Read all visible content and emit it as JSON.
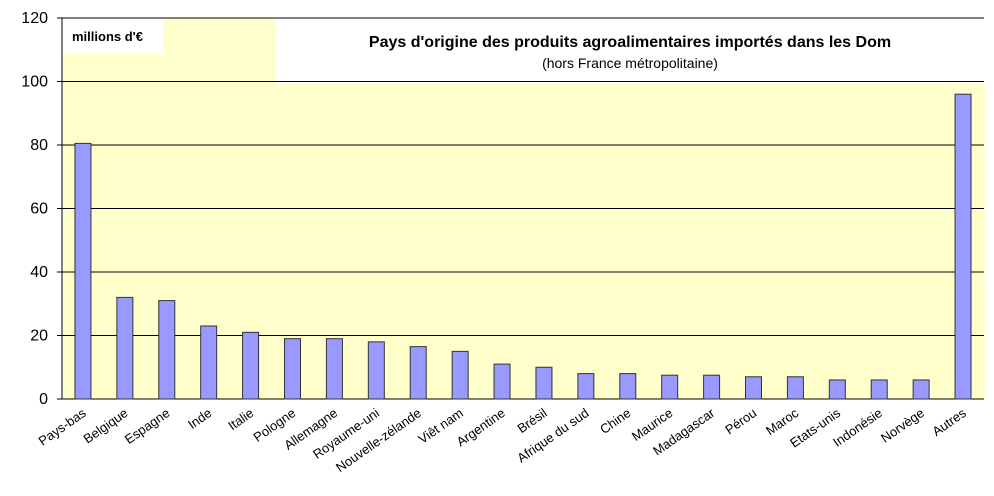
{
  "chart_data": {
    "type": "bar",
    "title": "Pays d'origine des produits agroalimentaires importés dans les Dom",
    "subtitle": "(hors France métropolitaine)",
    "y_label": "millions d'€",
    "categories": [
      "Pays-bas",
      "Belgique",
      "Espagne",
      "Inde",
      "Italie",
      "Pologne",
      "Allemagne",
      "Royaume-uni",
      "Nouvelle-zélande",
      "Viêt nam",
      "Argentine",
      "Brésil",
      "Afrique du sud",
      "Chine",
      "Maurice",
      "Madagascar",
      "Pérou",
      "Maroc",
      "Etats-unis",
      "Indonésie",
      "Norvège",
      "Autres"
    ],
    "values": [
      80.5,
      32,
      31,
      23,
      21,
      19,
      19,
      18,
      16.5,
      15,
      11,
      10,
      8,
      8,
      7.5,
      7.5,
      7,
      7,
      6,
      6,
      6,
      96
    ],
    "color": "#9999ff",
    "ylim": [
      0,
      120
    ],
    "yticks": [
      0,
      20,
      40,
      60,
      80,
      100,
      120
    ],
    "grid": true
  }
}
